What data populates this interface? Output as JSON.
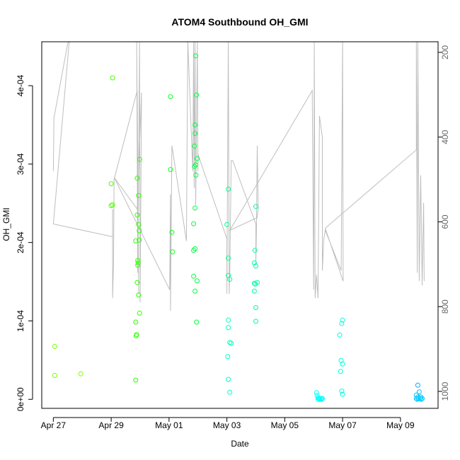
{
  "chart_data": {
    "type": "scatter",
    "title": "ATOM4 Southbound OH_GMI",
    "xlabel": "Date",
    "ylabel": "OH_GMI",
    "x_ticks": [
      "Apr 27",
      "Apr 29",
      "May 01",
      "May 03",
      "May 05",
      "May 07",
      "May 09"
    ],
    "x_tick_days": [
      0,
      2,
      4,
      6,
      8,
      10,
      12
    ],
    "xlim_days": [
      -0.4,
      13.3
    ],
    "y_ticks": [
      "0e+00",
      "1e-04",
      "2e-04",
      "3e-04",
      "4e-04"
    ],
    "y_tick_values": [
      0,
      0.0001,
      0.0002,
      0.0003,
      0.0004
    ],
    "ylim": [
      -1.15e-05,
      0.000456
    ],
    "y2_ticks": [
      "200",
      "400",
      "600",
      "800",
      "1000"
    ],
    "y2_tick_values": [
      200,
      400,
      600,
      800,
      1000
    ],
    "y2lim": [
      1040,
      175
    ],
    "grid": false,
    "series": [
      {
        "values": [
          [
            0.05,
            6.75e-05,
            "#7cff00"
          ],
          [
            0.05,
            3.05e-05,
            "#7cff00"
          ],
          [
            0.95,
            3.25e-05,
            "#7cff00"
          ],
          [
            2.05,
            0.00041,
            "#4cff00"
          ],
          [
            2.0,
            0.000275,
            "#4cff00"
          ],
          [
            2.0,
            0.000247,
            "#4cff00"
          ],
          [
            2.05,
            0.000248,
            "#4cff00"
          ],
          [
            2.85,
            0.000202,
            "#2cff00"
          ],
          [
            2.9,
            0.000282,
            "#2cff00"
          ],
          [
            2.9,
            0.000235,
            "#2cff00"
          ],
          [
            2.95,
            0.000223,
            "#2cff00"
          ],
          [
            2.95,
            0.00026,
            "#2cff00"
          ],
          [
            2.98,
            0.000306,
            "#2cff00"
          ],
          [
            2.97,
            0.000215,
            "#2cff00"
          ],
          [
            2.97,
            0.000203,
            "#2cff00"
          ],
          [
            2.92,
            0.000177,
            "#2cff00"
          ],
          [
            2.93,
            0.000174,
            "#2cff00"
          ],
          [
            2.92,
            0.000171,
            "#2cff00"
          ],
          [
            2.9,
            0.000149,
            "#2cff00"
          ],
          [
            2.95,
            0.000133,
            "#2cff00"
          ],
          [
            2.98,
            0.00011,
            "#2cff00"
          ],
          [
            2.85,
            9.85e-05,
            "#2cff00"
          ],
          [
            2.88,
            8.25e-05,
            "#2cff00"
          ],
          [
            2.86,
            8.1e-05,
            "#2cff00"
          ],
          [
            2.85,
            2.45e-05,
            "#2cff00"
          ],
          [
            4.05,
            0.000386,
            "#10ff20"
          ],
          [
            4.05,
            0.000293,
            "#10ff20"
          ],
          [
            4.1,
            0.000213,
            "#10ff20"
          ],
          [
            4.12,
            0.000188,
            "#10ff20"
          ],
          [
            4.92,
            0.000438,
            "#00ff40"
          ],
          [
            4.95,
            0.000388,
            "#00ff40"
          ],
          [
            4.9,
            0.00035,
            "#00ff40"
          ],
          [
            4.9,
            0.000339,
            "#00ff40"
          ],
          [
            4.88,
            0.000323,
            "#00ff40"
          ],
          [
            4.97,
            0.000307,
            "#00ff40"
          ],
          [
            4.92,
            0.000299,
            "#00ff40"
          ],
          [
            4.88,
            0.000297,
            "#00ff40"
          ],
          [
            4.93,
            0.000286,
            "#00ff40"
          ],
          [
            4.9,
            0.000244,
            "#00ff40"
          ],
          [
            4.85,
            0.000224,
            "#00ff40"
          ],
          [
            4.9,
            0.000192,
            "#00ff40"
          ],
          [
            4.85,
            0.00019,
            "#00ff40"
          ],
          [
            4.85,
            0.000157,
            "#00ff40"
          ],
          [
            4.97,
            0.000151,
            "#00ff40"
          ],
          [
            4.9,
            0.000138,
            "#00ff40"
          ],
          [
            4.95,
            9.85e-05,
            "#00ff40"
          ],
          [
            6.05,
            0.000268,
            "#00ff90"
          ],
          [
            6.0,
            0.000223,
            "#00ff90"
          ],
          [
            6.05,
            0.00018,
            "#00ff90"
          ],
          [
            6.05,
            0.000158,
            "#00ff90"
          ],
          [
            6.1,
            0.000153,
            "#00ff90"
          ],
          [
            6.05,
            0.000101,
            "#00ffc0"
          ],
          [
            6.05,
            9.15e-05,
            "#00ffc0"
          ],
          [
            6.1,
            7.25e-05,
            "#00ffc0"
          ],
          [
            6.15,
            7.15e-05,
            "#00ffc0"
          ],
          [
            6.03,
            5.45e-05,
            "#00ffc0"
          ],
          [
            6.05,
            2.55e-05,
            "#00ffc0"
          ],
          [
            6.1,
            9e-06,
            "#00ffc0"
          ],
          [
            7.0,
            0.000246,
            "#00ffa0"
          ],
          [
            6.97,
            0.00019,
            "#00ffa0"
          ],
          [
            6.95,
            0.000174,
            "#00ffa0"
          ],
          [
            7.0,
            0.00017,
            "#00ffa0"
          ],
          [
            7.05,
            0.000149,
            "#00ffa0"
          ],
          [
            6.95,
            0.000148,
            "#00ffa0"
          ],
          [
            6.98,
            0.000147,
            "#00ffa0"
          ],
          [
            6.95,
            0.000138,
            "#00ffa0"
          ],
          [
            7.0,
            0.000117,
            "#00ffa0"
          ],
          [
            7.0,
            9.95e-05,
            "#00ffa0"
          ],
          [
            9.1,
            8.5e-06,
            "#00ffff"
          ],
          [
            9.12,
            5e-06,
            "#00ffff"
          ],
          [
            9.15,
            2e-06,
            "#00ffff"
          ],
          [
            9.18,
            1e-06,
            "#00ffff"
          ],
          [
            9.2,
            1e-06,
            "#00ffff"
          ],
          [
            9.25,
            1e-06,
            "#00ffff"
          ],
          [
            9.3,
            1e-06,
            "#00ffff"
          ],
          [
            9.15,
            0.0,
            "#00ffff"
          ],
          [
            9.22,
            0.0,
            "#00ffff"
          ],
          [
            9.28,
            0.0,
            "#00ffff"
          ],
          [
            10.0,
            0.000101,
            "#00ffdd"
          ],
          [
            9.97,
            9.65e-05,
            "#00ffdd"
          ],
          [
            9.9,
            8.2e-05,
            "#00ffdd"
          ],
          [
            9.95,
            4.95e-05,
            "#00ffdd"
          ],
          [
            10.0,
            4.5e-05,
            "#00ffdd"
          ],
          [
            9.93,
            3.55e-05,
            "#00ffdd"
          ],
          [
            9.97,
            1.05e-05,
            "#00ffdd"
          ],
          [
            10.0,
            6.5e-06,
            "#00ffdd"
          ],
          [
            12.6,
            1.8e-05,
            "#00a8ff"
          ],
          [
            12.65,
            9.5e-06,
            "#00b8ff"
          ],
          [
            12.55,
            5.5e-06,
            "#00b8ff"
          ],
          [
            12.6,
            3e-06,
            "#00c0ff"
          ],
          [
            12.7,
            3e-06,
            "#00c0ff"
          ],
          [
            12.55,
            1e-06,
            "#00c8ff"
          ],
          [
            12.62,
            1e-06,
            "#00c8ff"
          ],
          [
            12.68,
            1e-06,
            "#00c8ff"
          ],
          [
            12.75,
            1e-06,
            "#00c8ff"
          ],
          [
            12.58,
            0.0,
            "#00d0ff"
          ],
          [
            12.72,
            0.0,
            "#00d0ff"
          ]
        ]
      }
    ],
    "pressure_trace": [
      [
        0.0,
        480
      ],
      [
        0.02,
        355
      ],
      [
        0.5,
        178
      ],
      [
        0.55,
        175
      ],
      [
        0.0,
        605
      ],
      [
        2.05,
        635
      ],
      [
        2.05,
        570
      ],
      [
        2.05,
        780
      ],
      [
        2.08,
        700
      ],
      [
        2.1,
        500
      ],
      [
        2.9,
        290
      ],
      [
        2.95,
        770
      ],
      [
        2.88,
        175
      ],
      [
        2.92,
        720
      ],
      [
        2.98,
        175
      ],
      [
        3.0,
        790
      ],
      [
        3.05,
        295
      ],
      [
        2.9,
        570
      ],
      [
        2.1,
        495
      ],
      [
        4.02,
        760
      ],
      [
        4.05,
        535
      ],
      [
        4.05,
        810
      ],
      [
        4.1,
        420
      ],
      [
        4.6,
        645
      ],
      [
        4.65,
        175
      ],
      [
        4.82,
        480
      ],
      [
        4.85,
        175
      ],
      [
        4.87,
        520
      ],
      [
        4.9,
        175
      ],
      [
        4.92,
        560
      ],
      [
        4.98,
        175
      ],
      [
        5.0,
        480
      ],
      [
        5.0,
        440
      ],
      [
        6.0,
        640
      ],
      [
        6.0,
        770
      ],
      [
        6.05,
        175
      ],
      [
        6.08,
        770
      ],
      [
        6.1,
        720
      ],
      [
        6.15,
        455
      ],
      [
        6.2,
        455
      ],
      [
        7.0,
        605
      ],
      [
        7.0,
        700
      ],
      [
        7.02,
        625
      ],
      [
        7.05,
        420
      ],
      [
        7.08,
        570
      ],
      [
        7.05,
        590
      ],
      [
        6.1,
        620
      ],
      [
        8.95,
        290
      ],
      [
        9.0,
        760
      ],
      [
        9.02,
        175
      ],
      [
        9.05,
        780
      ],
      [
        9.1,
        725
      ],
      [
        9.15,
        780
      ],
      [
        9.2,
        350
      ],
      [
        9.3,
        400
      ],
      [
        9.3,
        715
      ],
      [
        9.35,
        640
      ],
      [
        9.4,
        620
      ],
      [
        9.95,
        715
      ],
      [
        10.0,
        170
      ],
      [
        10.02,
        740
      ],
      [
        9.4,
        615
      ],
      [
        12.55,
        430
      ],
      [
        12.55,
        175
      ],
      [
        12.58,
        720
      ],
      [
        12.6,
        175
      ],
      [
        12.65,
        740
      ],
      [
        12.7,
        490
      ],
      [
        12.75,
        750
      ],
      [
        12.8,
        555
      ],
      [
        12.82,
        740
      ]
    ]
  }
}
